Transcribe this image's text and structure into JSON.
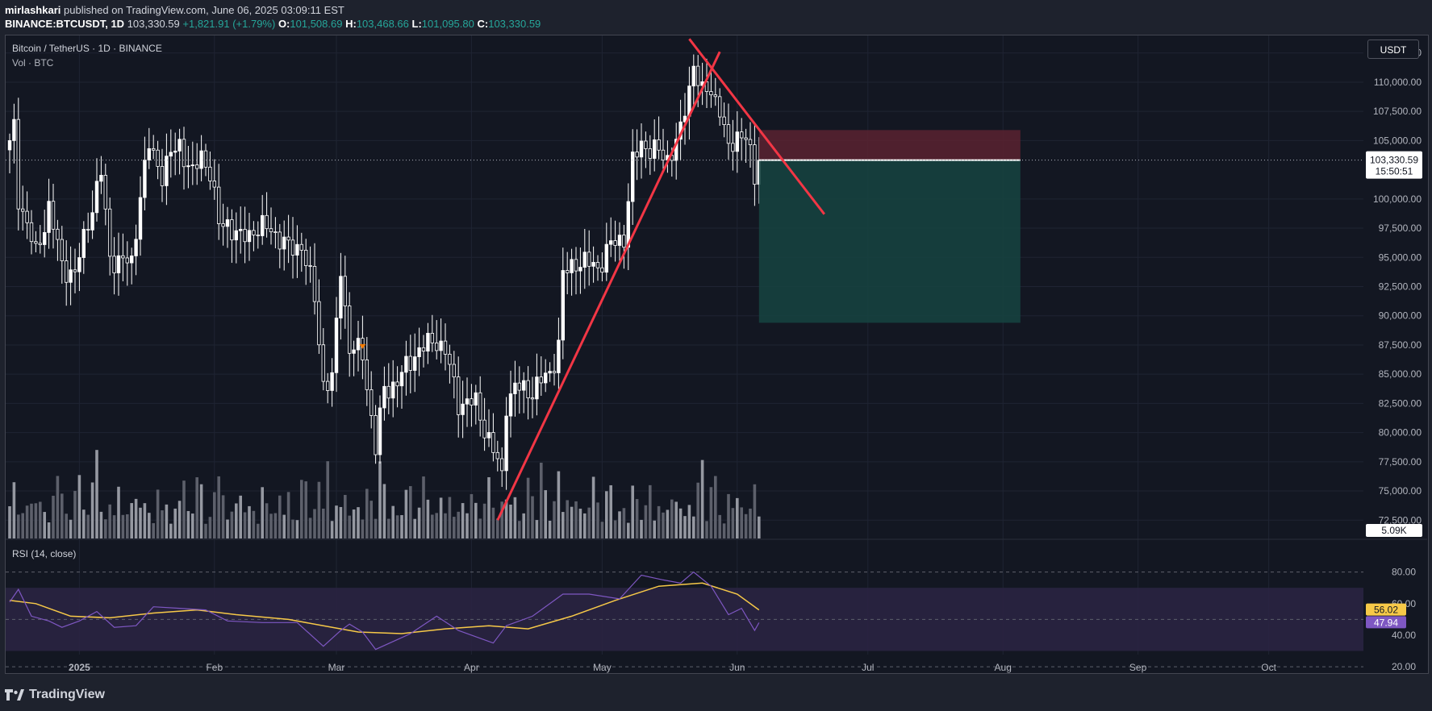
{
  "header": {
    "author": "mirlashkari",
    "published_text": "published on TradingView.com, June 06, 2025 03:09:11 EST",
    "symbol_line": "BINANCE:BTCUSDT, 1D",
    "close": "103,330.59",
    "change": "+1,821.91 (+1.79%)",
    "o_label": "O:",
    "o_value": "101,508.69",
    "h_label": "H:",
    "h_value": "103,468.66",
    "l_label": "L:",
    "l_value": "101,095.80",
    "c_label": "C:",
    "c_value": "103,330.59"
  },
  "legend": {
    "main": "Bitcoin / TetherUS · 1D · BINANCE",
    "volume": "Vol · BTC",
    "rsi": "RSI (14, close)"
  },
  "currency_button": "USDT",
  "branding": "TradingView",
  "colors": {
    "background": "#131722",
    "candle": "#ffffff",
    "volume": "#9598a1",
    "trendline": "#f23645",
    "stop_zone": "#5b2230",
    "target_zone": "#16413f",
    "rsi_line": "#7e57c2",
    "rsi_ma": "#f7c948",
    "rsi_band": "#2a2441"
  },
  "chart_data": [
    {
      "type": "candlestick",
      "title": "Bitcoin / TetherUS · 1D · BINANCE",
      "currency": "USDT",
      "x_start": "2024-12-16",
      "x_end": "2025-06-06",
      "ylim": [
        71000,
        114000
      ],
      "y_ticks": [
        "112,500.00",
        "110,000.00",
        "107,500.00",
        "105,000.00",
        "100,000.00",
        "97,500.00",
        "95,000.00",
        "92,500.00",
        "90,000.00",
        "87,500.00",
        "85,000.00",
        "82,500.00",
        "80,000.00",
        "77,500.00",
        "75,000.00",
        "72,500.00"
      ],
      "x_ticks": [
        "2025",
        "Feb",
        "Mar",
        "Apr",
        "May",
        "Jun",
        "Jul",
        "Aug",
        "Sep",
        "Oct"
      ],
      "last_price_label": "103,330.59",
      "countdown_label": "15:50:51",
      "volume_label": "5.09K",
      "close_path": [
        [
          "2024-12-16",
          104500
        ],
        [
          "2024-12-17",
          106100
        ],
        [
          "2024-12-18",
          100200
        ],
        [
          "2024-12-20",
          97800
        ],
        [
          "2024-12-22",
          95200
        ],
        [
          "2024-12-25",
          99300
        ],
        [
          "2024-12-28",
          94300
        ],
        [
          "2024-12-31",
          93500
        ],
        [
          "2025-01-03",
          98100
        ],
        [
          "2025-01-06",
          102200
        ],
        [
          "2025-01-08",
          95000
        ],
        [
          "2025-01-10",
          94700
        ],
        [
          "2025-01-13",
          94500
        ],
        [
          "2025-01-15",
          100500
        ],
        [
          "2025-01-17",
          104500
        ],
        [
          "2025-01-20",
          102200
        ],
        [
          "2025-01-22",
          103700
        ],
        [
          "2025-01-24",
          104700
        ],
        [
          "2025-01-27",
          102000
        ],
        [
          "2025-01-29",
          103800
        ],
        [
          "2025-01-31",
          102400
        ],
        [
          "2025-02-02",
          97700
        ],
        [
          "2025-02-04",
          98000
        ],
        [
          "2025-02-07",
          96500
        ],
        [
          "2025-02-10",
          97400
        ],
        [
          "2025-02-14",
          97500
        ],
        [
          "2025-02-18",
          95700
        ],
        [
          "2025-02-21",
          96100
        ],
        [
          "2025-02-24",
          91500
        ],
        [
          "2025-02-26",
          84300
        ],
        [
          "2025-02-28",
          84300
        ],
        [
          "2025-03-02",
          94200
        ],
        [
          "2025-03-04",
          87200
        ],
        [
          "2025-03-07",
          86800
        ],
        [
          "2025-03-10",
          78600
        ],
        [
          "2025-03-12",
          83700
        ],
        [
          "2025-03-15",
          84300
        ],
        [
          "2025-03-19",
          86800
        ],
        [
          "2025-03-24",
          88000
        ],
        [
          "2025-03-26",
          86900
        ],
        [
          "2025-03-29",
          82600
        ],
        [
          "2025-04-02",
          82500
        ],
        [
          "2025-04-06",
          78400
        ],
        [
          "2025-04-08",
          76300
        ],
        [
          "2025-04-09",
          82600
        ],
        [
          "2025-04-11",
          83800
        ],
        [
          "2025-04-15",
          83600
        ],
        [
          "2025-04-19",
          85100
        ],
        [
          "2025-04-21",
          87500
        ],
        [
          "2025-04-22",
          93400
        ],
        [
          "2025-04-25",
          94700
        ],
        [
          "2025-04-30",
          94200
        ],
        [
          "2025-05-03",
          96000
        ],
        [
          "2025-05-06",
          96800
        ],
        [
          "2025-05-08",
          103000
        ],
        [
          "2025-05-10",
          104800
        ],
        [
          "2025-05-13",
          104100
        ],
        [
          "2025-05-16",
          103500
        ],
        [
          "2025-05-19",
          105600
        ],
        [
          "2025-05-21",
          109600
        ],
        [
          "2025-05-22",
          111700
        ],
        [
          "2025-05-24",
          108900
        ],
        [
          "2025-05-26",
          109400
        ],
        [
          "2025-05-28",
          107800
        ],
        [
          "2025-05-30",
          103900
        ],
        [
          "2025-06-01",
          105700
        ],
        [
          "2025-06-03",
          105400
        ],
        [
          "2025-06-05",
          101500
        ],
        [
          "2025-06-06",
          103330.59
        ]
      ],
      "drawings": {
        "uptrend_line": {
          "from": [
            "2025-04-07",
            72500
          ],
          "to": [
            "2025-05-28",
            112600
          ]
        },
        "downtrend_line": {
          "from": [
            "2025-05-21",
            113700
          ],
          "to": [
            "2025-06-21",
            98700
          ]
        },
        "position": {
          "start": "2025-06-06",
          "end": "2025-08-05",
          "entry": 103330.59,
          "stop": 105900,
          "target": 89400
        }
      }
    },
    {
      "type": "line",
      "title": "RSI (14, close)",
      "ylim": [
        17,
        90
      ],
      "y_ticks": [
        "80.00",
        "60.00",
        "40.00",
        "20.00"
      ],
      "bands": [
        30,
        70
      ],
      "rsi_label": "47.94",
      "ma_label": "56.02",
      "series": [
        {
          "values_path": [
            [
              "2024-12-16",
              61
            ],
            [
              "2024-12-18",
              69
            ],
            [
              "2024-12-21",
              52
            ],
            [
              "2024-12-25",
              49
            ],
            [
              "2024-12-28",
              45
            ],
            [
              "2025-01-01",
              49
            ],
            [
              "2025-01-05",
              55
            ],
            [
              "2025-01-09",
              45
            ],
            [
              "2025-01-14",
              46
            ],
            [
              "2025-01-18",
              58
            ],
            [
              "2025-01-24",
              57
            ],
            [
              "2025-01-30",
              56
            ],
            [
              "2025-02-04",
              49
            ],
            [
              "2025-02-12",
              48
            ],
            [
              "2025-02-20",
              48
            ],
            [
              "2025-02-26",
              33
            ],
            [
              "2025-03-02",
              43
            ],
            [
              "2025-03-04",
              47
            ],
            [
              "2025-03-07",
              42
            ],
            [
              "2025-03-10",
              31
            ],
            [
              "2025-03-18",
              41
            ],
            [
              "2025-03-24",
              52
            ],
            [
              "2025-03-29",
              43
            ],
            [
              "2025-04-06",
              35
            ],
            [
              "2025-04-09",
              46
            ],
            [
              "2025-04-15",
              52
            ],
            [
              "2025-04-22",
              66
            ],
            [
              "2025-04-28",
              66
            ],
            [
              "2025-05-05",
              63
            ],
            [
              "2025-05-10",
              78
            ],
            [
              "2025-05-15",
              75
            ],
            [
              "2025-05-19",
              73
            ],
            [
              "2025-05-22",
              80
            ],
            [
              "2025-05-26",
              71
            ],
            [
              "2025-05-30",
              53
            ],
            [
              "2025-06-02",
              57
            ],
            [
              "2025-06-05",
              43
            ],
            [
              "2025-06-06",
              47.94
            ]
          ]
        },
        {
          "values_path": [
            [
              "2024-12-16",
              62
            ],
            [
              "2024-12-22",
              60
            ],
            [
              "2024-12-30",
              52
            ],
            [
              "2025-01-08",
              51
            ],
            [
              "2025-01-18",
              54
            ],
            [
              "2025-01-28",
              56
            ],
            [
              "2025-02-06",
              53
            ],
            [
              "2025-02-18",
              50
            ],
            [
              "2025-02-26",
              46
            ],
            [
              "2025-03-06",
              42
            ],
            [
              "2025-03-16",
              41
            ],
            [
              "2025-03-26",
              44
            ],
            [
              "2025-04-05",
              46
            ],
            [
              "2025-04-14",
              44
            ],
            [
              "2025-04-24",
              52
            ],
            [
              "2025-05-04",
              62
            ],
            [
              "2025-05-14",
              71
            ],
            [
              "2025-05-24",
              73
            ],
            [
              "2025-06-01",
              66
            ],
            [
              "2025-06-06",
              56.02
            ]
          ]
        }
      ]
    }
  ]
}
